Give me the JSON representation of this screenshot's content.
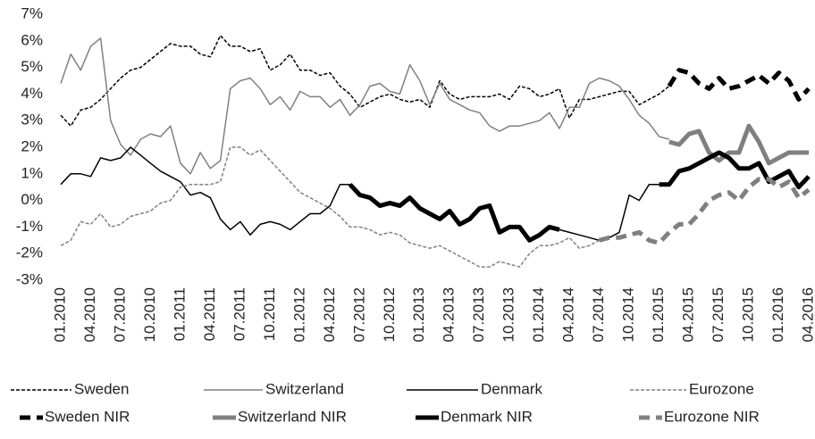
{
  "chart_data": {
    "type": "line",
    "categories": [
      "01.2010",
      null,
      null,
      "04.2010",
      null,
      null,
      "07.2010",
      null,
      null,
      "10.2010",
      null,
      null,
      "01.2011",
      null,
      null,
      "04.2011",
      null,
      null,
      "07.2011",
      null,
      null,
      "10.2011",
      null,
      null,
      "01.2012",
      null,
      null,
      "04.2012",
      null,
      null,
      "07.2012",
      null,
      null,
      "10.2012",
      null,
      null,
      "01.2013",
      null,
      null,
      "04.2013",
      null,
      null,
      "07.2013",
      null,
      null,
      "10.2013",
      null,
      null,
      "01.2014",
      null,
      null,
      "04.2014",
      null,
      null,
      "07.2014",
      null,
      null,
      "10.2014",
      null,
      null,
      "01.2015",
      null,
      null,
      "04.2015",
      null,
      null,
      "07.2015",
      null,
      null,
      "10.2015",
      null,
      null,
      "01.2016",
      null,
      null,
      "04.2016"
    ],
    "ylim": [
      -3,
      7
    ],
    "yticks": [
      {
        "value": -3,
        "label": "-3%"
      },
      {
        "value": -2,
        "label": "-2%"
      },
      {
        "value": -1,
        "label": "-1%"
      },
      {
        "value": 0,
        "label": "0%"
      },
      {
        "value": 1,
        "label": "1%"
      },
      {
        "value": 2,
        "label": "2%"
      },
      {
        "value": 3,
        "label": "3%"
      },
      {
        "value": 4,
        "label": "4%"
      },
      {
        "value": 5,
        "label": "5%"
      },
      {
        "value": 6,
        "label": "6%"
      },
      {
        "value": 7,
        "label": "7%"
      }
    ],
    "grid": false,
    "legend": "bottom",
    "series": [
      {
        "name": "Sweden",
        "color": "#000000",
        "dashed": true,
        "thick": false,
        "values": [
          3.2,
          2.8,
          3.4,
          3.5,
          3.8,
          4.2,
          4.6,
          4.9,
          5.0,
          5.3,
          5.6,
          5.9,
          5.8,
          5.8,
          5.5,
          5.4,
          6.2,
          5.8,
          5.8,
          5.6,
          5.7,
          4.9,
          5.1,
          5.5,
          4.9,
          4.9,
          4.7,
          4.8,
          4.3,
          4.0,
          3.5,
          3.7,
          3.9,
          4.0,
          3.8,
          3.7,
          3.8,
          3.5,
          4.5,
          4.0,
          3.8,
          3.9,
          3.9,
          3.9,
          4.0,
          3.8,
          4.3,
          4.2,
          3.9,
          4.0,
          4.2,
          3.1,
          3.8,
          3.8,
          3.9,
          4.0,
          4.1,
          4.1,
          3.6,
          3.8,
          4.0,
          4.3,
          null,
          null,
          null,
          null,
          null,
          null,
          null,
          null,
          null,
          null,
          null,
          null,
          null,
          null
        ]
      },
      {
        "name": "Switzerland",
        "color": "#808080",
        "dashed": false,
        "thick": false,
        "values": [
          4.4,
          5.5,
          4.9,
          5.8,
          6.1,
          3.0,
          2.1,
          1.7,
          2.3,
          2.5,
          2.4,
          2.8,
          1.4,
          1.0,
          1.8,
          1.2,
          1.5,
          4.2,
          4.5,
          4.6,
          4.2,
          3.6,
          3.9,
          3.4,
          4.1,
          3.9,
          3.9,
          3.5,
          3.8,
          3.2,
          3.6,
          4.3,
          4.4,
          4.1,
          4.0,
          5.1,
          4.5,
          3.6,
          4.4,
          3.8,
          3.6,
          3.4,
          3.3,
          2.8,
          2.6,
          2.8,
          2.8,
          2.9,
          3.0,
          3.3,
          2.7,
          3.5,
          3.5,
          4.4,
          4.6,
          4.5,
          4.3,
          3.8,
          3.2,
          2.9,
          2.4,
          2.3,
          null,
          null,
          null,
          null,
          null,
          null,
          null,
          null,
          null,
          null,
          null,
          null,
          null,
          null
        ]
      },
      {
        "name": "Denmark",
        "color": "#000000",
        "dashed": false,
        "thick": false,
        "values": [
          0.6,
          1.0,
          1.0,
          0.9,
          1.6,
          1.5,
          1.6,
          2.0,
          1.7,
          1.4,
          1.1,
          0.9,
          0.7,
          0.2,
          0.3,
          0.1,
          -0.7,
          -1.1,
          -0.8,
          -1.3,
          -0.9,
          -0.8,
          -0.9,
          -1.1,
          -0.8,
          -0.5,
          -0.5,
          -0.2,
          0.6,
          0.6,
          null,
          null,
          null,
          null,
          null,
          null,
          null,
          null,
          null,
          null,
          null,
          null,
          null,
          null,
          null,
          null,
          null,
          null,
          null,
          null,
          -1.1,
          -1.2,
          -1.3,
          -1.4,
          -1.5,
          -1.4,
          -1.2,
          0.2,
          0.0,
          0.6,
          0.6,
          null,
          null,
          null,
          null,
          null,
          null,
          null,
          null,
          null,
          null,
          null,
          null,
          null,
          null,
          null
        ]
      },
      {
        "name": "Eurozone",
        "color": "#808080",
        "dashed": true,
        "thick": false,
        "values": [
          -1.7,
          -1.5,
          -0.8,
          -0.9,
          -0.5,
          -1.0,
          -0.9,
          -0.6,
          -0.5,
          -0.4,
          -0.1,
          0.0,
          0.5,
          0.6,
          0.6,
          0.6,
          0.7,
          2.0,
          2.0,
          1.7,
          1.9,
          1.5,
          1.1,
          0.7,
          0.3,
          0.1,
          -0.1,
          -0.3,
          -0.6,
          -1.0,
          -1.0,
          -1.1,
          -1.3,
          -1.2,
          -1.3,
          -1.6,
          -1.7,
          -1.8,
          -1.7,
          -1.9,
          -2.1,
          -2.3,
          -2.5,
          -2.5,
          -2.3,
          -2.4,
          -2.5,
          -2.0,
          -1.7,
          -1.7,
          -1.6,
          -1.4,
          -1.8,
          -1.7,
          -1.5,
          null,
          null,
          null,
          null,
          null,
          null,
          null,
          null,
          null,
          null,
          null,
          null,
          null,
          null,
          null,
          null,
          null,
          null,
          null,
          null,
          null
        ]
      },
      {
        "name": "Sweden NIR",
        "color": "#000000",
        "dashed": true,
        "thick": true,
        "values": [
          null,
          null,
          null,
          null,
          null,
          null,
          null,
          null,
          null,
          null,
          null,
          null,
          null,
          null,
          null,
          null,
          null,
          null,
          null,
          null,
          null,
          null,
          null,
          null,
          null,
          null,
          null,
          null,
          null,
          null,
          null,
          null,
          null,
          null,
          null,
          null,
          null,
          null,
          null,
          null,
          null,
          null,
          null,
          null,
          null,
          null,
          null,
          null,
          null,
          null,
          null,
          null,
          null,
          null,
          null,
          null,
          null,
          null,
          null,
          null,
          null,
          4.3,
          4.9,
          4.8,
          4.4,
          4.2,
          4.6,
          4.2,
          4.3,
          4.5,
          4.7,
          4.4,
          4.8,
          4.5,
          3.8,
          4.2
        ]
      },
      {
        "name": "Switzerland NIR",
        "color": "#808080",
        "dashed": false,
        "thick": true,
        "values": [
          null,
          null,
          null,
          null,
          null,
          null,
          null,
          null,
          null,
          null,
          null,
          null,
          null,
          null,
          null,
          null,
          null,
          null,
          null,
          null,
          null,
          null,
          null,
          null,
          null,
          null,
          null,
          null,
          null,
          null,
          null,
          null,
          null,
          null,
          null,
          null,
          null,
          null,
          null,
          null,
          null,
          null,
          null,
          null,
          null,
          null,
          null,
          null,
          null,
          null,
          null,
          null,
          null,
          null,
          null,
          null,
          null,
          null,
          null,
          null,
          null,
          2.2,
          2.1,
          2.5,
          2.6,
          1.8,
          1.5,
          1.8,
          1.8,
          2.8,
          2.2,
          1.4,
          1.6,
          1.8,
          1.8,
          1.8
        ]
      },
      {
        "name": "Denmark NIR",
        "color": "#000000",
        "dashed": false,
        "thick": true,
        "values": [
          null,
          null,
          null,
          null,
          null,
          null,
          null,
          null,
          null,
          null,
          null,
          null,
          null,
          null,
          null,
          null,
          null,
          null,
          null,
          null,
          null,
          null,
          null,
          null,
          null,
          null,
          null,
          null,
          null,
          0.6,
          0.2,
          0.1,
          -0.2,
          -0.1,
          -0.2,
          0.1,
          -0.3,
          -0.5,
          -0.7,
          -0.4,
          -0.9,
          -0.7,
          -0.3,
          -0.2,
          -1.2,
          -1.0,
          -1.0,
          -1.5,
          -1.3,
          -1.0,
          -1.1,
          null,
          null,
          null,
          null,
          null,
          null,
          null,
          null,
          null,
          0.6,
          0.6,
          1.1,
          1.2,
          1.4,
          1.6,
          1.8,
          1.6,
          1.2,
          1.2,
          1.4,
          0.7,
          0.9,
          1.1,
          0.5,
          0.9
        ]
      },
      {
        "name": "Eurozone NIR",
        "color": "#808080",
        "dashed": true,
        "thick": true,
        "values": [
          null,
          null,
          null,
          null,
          null,
          null,
          null,
          null,
          null,
          null,
          null,
          null,
          null,
          null,
          null,
          null,
          null,
          null,
          null,
          null,
          null,
          null,
          null,
          null,
          null,
          null,
          null,
          null,
          null,
          null,
          null,
          null,
          null,
          null,
          null,
          null,
          null,
          null,
          null,
          null,
          null,
          null,
          null,
          null,
          null,
          null,
          null,
          null,
          null,
          null,
          null,
          null,
          null,
          null,
          -1.5,
          -1.4,
          -1.4,
          -1.3,
          -1.2,
          -1.5,
          -1.6,
          -1.2,
          -0.9,
          -0.9,
          -0.5,
          0.0,
          0.2,
          0.3,
          0.0,
          0.5,
          0.8,
          0.8,
          0.5,
          0.7,
          0.1,
          0.4
        ]
      }
    ]
  }
}
